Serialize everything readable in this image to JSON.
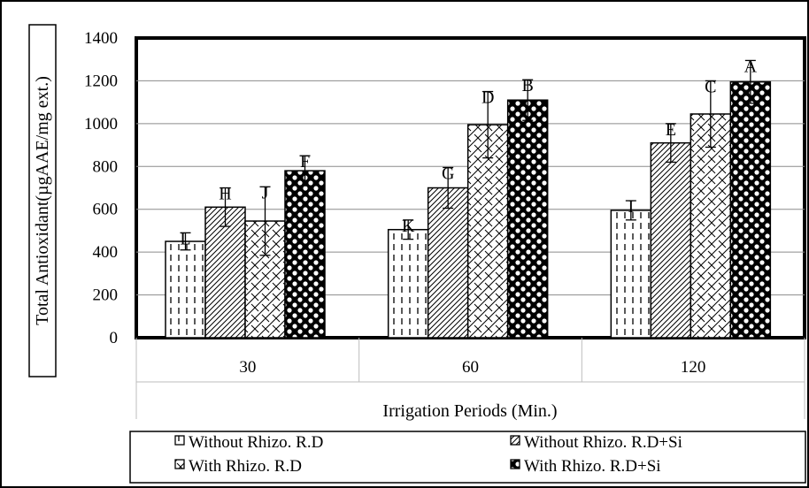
{
  "chart_data": {
    "type": "bar",
    "categories": [
      "30",
      "60",
      "120"
    ],
    "ylabel": "Total Antioxidant(µgAAE/mg ext.)",
    "xlabel": "Irrigation Periods (Min.)",
    "ylim": [
      0,
      1400
    ],
    "yticks": [
      "0",
      "200",
      "400",
      "600",
      "800",
      "1000",
      "1200",
      "1400"
    ],
    "grid": true,
    "legend_position": "bottom",
    "series": [
      {
        "name": "Without Rhizo. R.D",
        "pattern": "vertical-dashes",
        "values": [
          450,
          505,
          595
        ],
        "errors": [
          40,
          45,
          45
        ],
        "letters": [
          "L",
          "K",
          "I"
        ]
      },
      {
        "name": "Without Rhizo. R.D+Si",
        "pattern": "diagonal-lines",
        "values": [
          610,
          700,
          910
        ],
        "errors": [
          90,
          95,
          90
        ],
        "letters": [
          "H",
          "G",
          "E"
        ]
      },
      {
        "name": "With Rhizo. R.D",
        "pattern": "crosshatch",
        "values": [
          545,
          995,
          1045
        ],
        "errors": [
          160,
          155,
          155
        ],
        "letters": [
          "J",
          "D",
          "C"
        ]
      },
      {
        "name": "With Rhizo. R.D+Si",
        "pattern": "black-dots",
        "values": [
          780,
          1110,
          1195
        ],
        "errors": [
          70,
          95,
          100
        ],
        "letters": [
          "F",
          "B",
          "A"
        ]
      }
    ]
  }
}
